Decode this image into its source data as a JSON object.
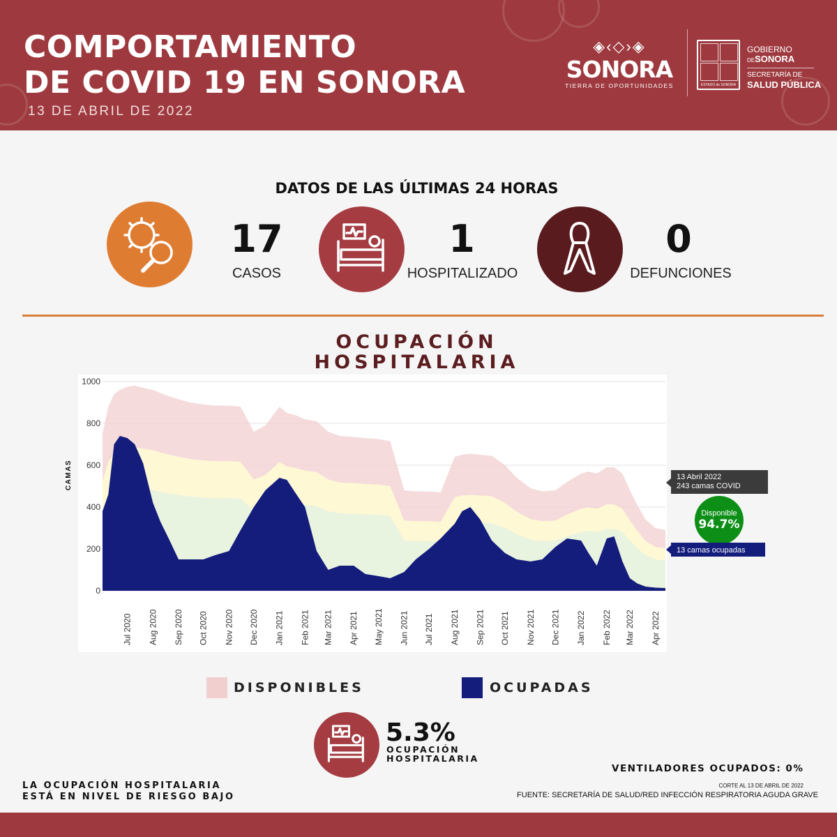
{
  "header": {
    "title_line1": "COMPORTAMIENTO",
    "title_line2": "DE COVID 19 EN SONORA",
    "date": "13 DE ABRIL DE 2022",
    "brand_name": "SONORA",
    "brand_tagline": "TIERRA DE OPORTUNIDADES",
    "gov_line1": "GOBIERNO",
    "gov_line2_prefix": "DE",
    "gov_line2": "SONORA",
    "gov_line3": "SECRETARÍA DE",
    "gov_line4": "SALUD PÚBLICA",
    "seal_caption": "ESTADO de SONORA"
  },
  "last24": {
    "heading": "DATOS DE LAS ÚLTIMAS 24 HORAS",
    "cases": {
      "value": "17",
      "label": "CASOS",
      "icon": "virus-magnifier-icon",
      "color": "#de7c32"
    },
    "hospitalized": {
      "value": "1",
      "label": "HOSPITALIZADO",
      "icon": "hospital-bed-icon",
      "color": "#a43c42"
    },
    "deaths": {
      "value": "0",
      "label": "DEFUNCIONES",
      "icon": "ribbon-icon",
      "color": "#5a1b1e"
    }
  },
  "chart_title_line1": "OCUPACIÓN",
  "chart_title_line2": "HOSPITALARIA",
  "chart_data": {
    "type": "area",
    "ylabel": "CAMAS",
    "ylim": [
      0,
      1000
    ],
    "yticks": [
      0,
      200,
      400,
      600,
      800,
      1000
    ],
    "x_tick_labels": [
      "Jul 2020",
      "Aug 2020",
      "Sep 2020",
      "Oct 2020",
      "Nov 2020",
      "Dec 2020",
      "Jan 2021",
      "Feb 2021",
      "Mar 2021",
      "Apr 2021",
      "May 2021",
      "Jun 2021",
      "Jul 2021",
      "Aug 2021",
      "Sep 2021",
      "Oct 2021",
      "Nov 2021",
      "Dec 2021",
      "Jan 2022",
      "Feb 2022",
      "Mar 2022",
      "Apr 2022"
    ],
    "x": [
      "2020-06-01",
      "2020-06-08",
      "2020-06-15",
      "2020-06-22",
      "2020-07-01",
      "2020-07-10",
      "2020-07-20",
      "2020-08-01",
      "2020-08-10",
      "2020-08-20",
      "2020-09-01",
      "2020-09-15",
      "2020-10-01",
      "2020-10-15",
      "2020-11-01",
      "2020-11-15",
      "2020-12-01",
      "2020-12-15",
      "2021-01-01",
      "2021-01-10",
      "2021-01-20",
      "2021-02-01",
      "2021-02-15",
      "2021-03-01",
      "2021-03-15",
      "2021-04-01",
      "2021-04-15",
      "2021-05-01",
      "2021-05-15",
      "2021-06-01",
      "2021-06-15",
      "2021-07-01",
      "2021-07-15",
      "2021-08-01",
      "2021-08-10",
      "2021-08-20",
      "2021-09-01",
      "2021-09-15",
      "2021-10-01",
      "2021-10-15",
      "2021-11-01",
      "2021-11-15",
      "2021-12-01",
      "2021-12-15",
      "2022-01-01",
      "2022-01-10",
      "2022-01-20",
      "2022-02-01",
      "2022-02-10",
      "2022-02-20",
      "2022-03-01",
      "2022-03-10",
      "2022-03-20",
      "2022-04-01",
      "2022-04-13"
    ],
    "series": [
      {
        "name": "Disponibles",
        "color": "#f2cfcf",
        "values": [
          750,
          880,
          940,
          960,
          975,
          980,
          970,
          960,
          945,
          930,
          915,
          900,
          890,
          885,
          885,
          880,
          760,
          790,
          880,
          850,
          840,
          820,
          810,
          760,
          740,
          735,
          730,
          725,
          715,
          480,
          475,
          475,
          470,
          640,
          650,
          655,
          650,
          645,
          600,
          540,
          490,
          475,
          480,
          520,
          560,
          570,
          560,
          590,
          590,
          560,
          480,
          410,
          340,
          300,
          290
        ]
      },
      {
        "name": "Ocupadas",
        "color": "#141c7c",
        "values": [
          380,
          460,
          700,
          740,
          730,
          700,
          610,
          420,
          330,
          250,
          150,
          150,
          150,
          170,
          190,
          290,
          400,
          480,
          540,
          530,
          470,
          400,
          190,
          100,
          120,
          120,
          80,
          70,
          60,
          90,
          150,
          200,
          250,
          320,
          380,
          400,
          340,
          240,
          180,
          150,
          140,
          150,
          210,
          250,
          240,
          180,
          120,
          250,
          260,
          140,
          60,
          35,
          20,
          15,
          13
        ]
      }
    ],
    "annotations": {
      "date_label": "13 Abril 2022",
      "covid_beds_label": "243 camas COVID",
      "available_title": "Disponible",
      "available_pct": "94.7%",
      "occupied_label": "13 camas ocupadas"
    }
  },
  "legend": {
    "available": "DISPONIBLES",
    "occupied": "OCUPADAS",
    "available_color": "#f2cfcf",
    "occupied_color": "#141c7c"
  },
  "occupancy": {
    "pct": "5.3%",
    "label_line1": "OCUPACIÓN",
    "label_line2": "HOSPITALARIA"
  },
  "footer": {
    "risk_line1": "LA OCUPACIÓN HOSPITALARIA",
    "risk_line2": "ESTÁ EN NIVEL DE RIESGO BAJO",
    "ventilators": "VENTILADORES OCUPADOS: 0%",
    "cutoff": "CORTE AL 13 DE ABRIL DE 2022",
    "source": "FUENTE: SECRETARÍA DE SALUD/RED INFECCIÓN RESPIRATORIA AGUDA GRAVE"
  }
}
